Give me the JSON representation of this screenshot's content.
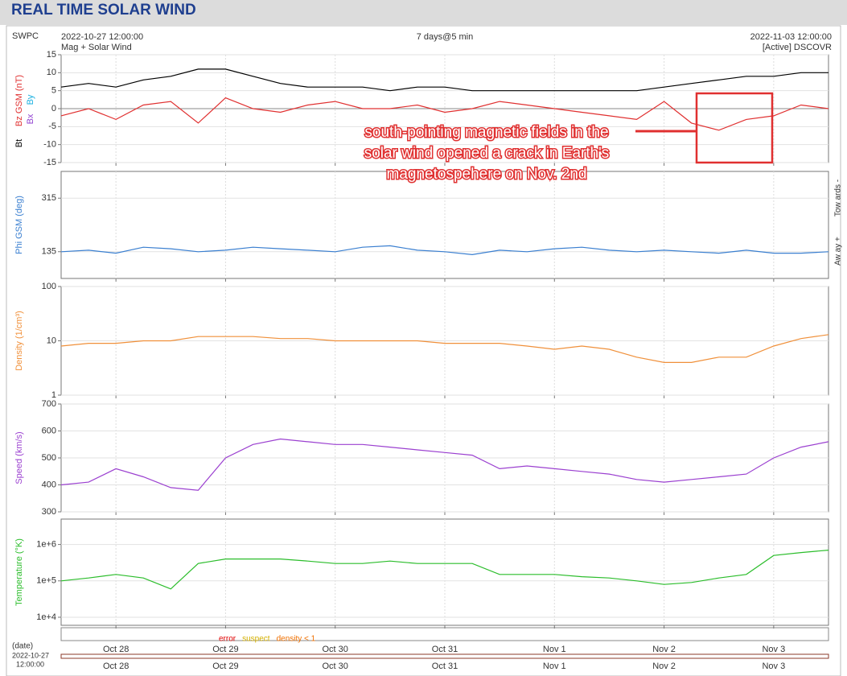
{
  "header": {
    "title": "REAL TIME SOLAR WIND",
    "source": "SWPC",
    "start": "2022-10-27 12:00:00",
    "subtitle": "Mag + Solar Wind",
    "span": "7 days@5 min",
    "end": "2022-11-03 12:00:00",
    "status": "[Active] DSCOVR"
  },
  "annotation": {
    "lines": [
      "south-pointing magnetic fields in the",
      "solar wind  opened a crack in Earth's",
      "magnetospehere on Nov. 2nd"
    ]
  },
  "flags": [
    {
      "name": "error",
      "color": "#e00000"
    },
    {
      "name": "suspect",
      "color": "#d4b000"
    },
    {
      "name": "density < 1",
      "color": "#f07000"
    }
  ],
  "date_axis": {
    "label": "(date)",
    "start": [
      "2022-10-27",
      "12:00:00"
    ]
  },
  "chart_data": {
    "type": "line",
    "categories": [
      null,
      null,
      "Oct 28",
      null,
      null,
      null,
      "Oct 29",
      null,
      null,
      null,
      "Oct 30",
      null,
      null,
      null,
      "Oct 31",
      null,
      null,
      null,
      "Nov 1",
      null,
      null,
      null,
      "Nov 2",
      null,
      null,
      null,
      "Nov 3",
      null,
      null
    ],
    "panels": [
      {
        "ylim": [
          -15,
          15
        ],
        "yticks": [
          -15,
          -10,
          -5,
          0,
          5,
          10,
          15
        ],
        "log": false,
        "extra_labels": [
          {
            "text": "Bx",
            "color": "#9040d0"
          },
          {
            "text": "By",
            "color": "#1ab0e0"
          }
        ],
        "series": [
          {
            "name": "Bt",
            "color": "#000000",
            "values": [
              6,
              7,
              6,
              8,
              9,
              11,
              11,
              9,
              7,
              6,
              6,
              6,
              5,
              6,
              6,
              5,
              5,
              5,
              5,
              5,
              5,
              5,
              6,
              7,
              8,
              9,
              9,
              10,
              10
            ]
          },
          {
            "name": "Bz GSM (nT)",
            "color": "#e03030",
            "values": [
              -2,
              0,
              -3,
              1,
              2,
              -4,
              3,
              0,
              -1,
              1,
              2,
              0,
              0,
              1,
              -1,
              0,
              2,
              1,
              0,
              -1,
              -2,
              -3,
              2,
              -4,
              -6,
              -3,
              -2,
              1,
              0
            ]
          }
        ]
      },
      {
        "ylim": [
          45,
          405
        ],
        "yticks": [
          135,
          315
        ],
        "log": false,
        "side_labels": [
          "Tow ards -",
          "Aw ay +"
        ],
        "series": [
          {
            "name": "Phi GSM (deg)",
            "color": "#3a7fd0",
            "values": [
              135,
              140,
              130,
              150,
              145,
              135,
              140,
              150,
              145,
              140,
              135,
              150,
              155,
              140,
              135,
              125,
              140,
              135,
              145,
              150,
              140,
              135,
              140,
              135,
              130,
              140,
              130,
              130,
              135
            ]
          }
        ]
      },
      {
        "ylim": [
          1,
          100
        ],
        "yticks": [
          1,
          10,
          100
        ],
        "log": true,
        "series": [
          {
            "name": "Density (1/cm³)",
            "color": "#f0903a",
            "values": [
              8,
              9,
              9,
              10,
              10,
              12,
              12,
              12,
              11,
              11,
              10,
              10,
              10,
              10,
              9,
              9,
              9,
              8,
              7,
              8,
              7,
              5,
              4,
              4,
              5,
              5,
              8,
              11,
              13
            ]
          }
        ]
      },
      {
        "ylim": [
          300,
          700
        ],
        "yticks": [
          300,
          400,
          500,
          600,
          700
        ],
        "log": false,
        "series": [
          {
            "name": "Speed (km/s)",
            "color": "#9b40d0",
            "values": [
              400,
              410,
              460,
              430,
              390,
              380,
              500,
              550,
              570,
              560,
              550,
              550,
              540,
              530,
              520,
              510,
              460,
              470,
              460,
              450,
              440,
              420,
              410,
              420,
              430,
              440,
              500,
              540,
              560
            ]
          }
        ]
      },
      {
        "ylim": [
          6000,
          5000000
        ],
        "yticks": [
          {
            "value": 10000,
            "label": "1e+4"
          },
          {
            "value": 100000,
            "label": "1e+5"
          },
          {
            "value": 1000000,
            "label": "1e+6"
          }
        ],
        "log": true,
        "series": [
          {
            "name": "Temperature (°K)",
            "color": "#2bbd2b",
            "values": [
              100000,
              120000,
              150000,
              120000,
              60000,
              300000,
              400000,
              400000,
              400000,
              350000,
              300000,
              300000,
              350000,
              300000,
              300000,
              300000,
              150000,
              150000,
              150000,
              130000,
              120000,
              100000,
              80000,
              90000,
              120000,
              150000,
              500000,
              600000,
              700000
            ]
          }
        ]
      }
    ]
  }
}
